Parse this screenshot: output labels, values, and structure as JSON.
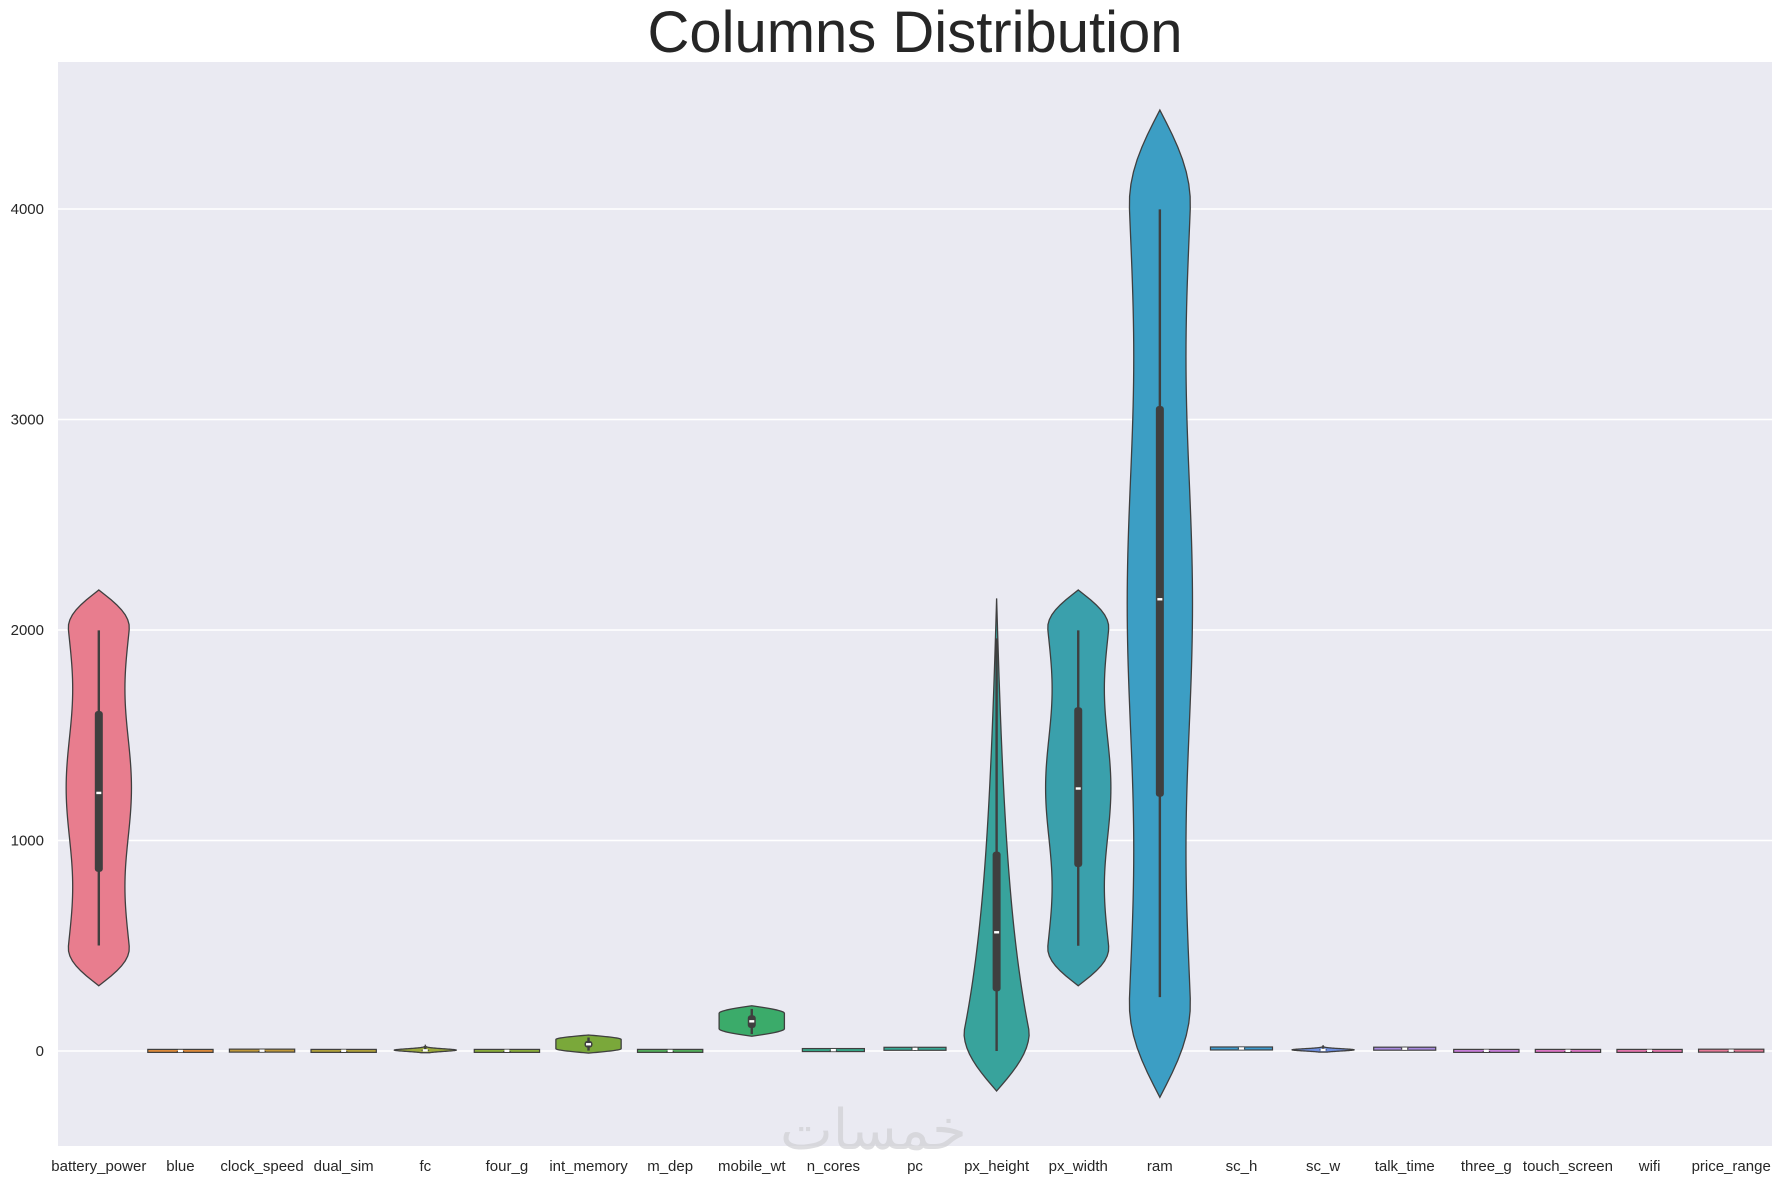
{
  "chart_data": {
    "type": "violin",
    "title": "Columns Distribution",
    "xlabel": "",
    "ylabel": "",
    "ylim": [
      -460,
      4720
    ],
    "yticks": [
      0,
      1000,
      2000,
      3000,
      4000
    ],
    "grid": true,
    "watermark": "خمسات",
    "categories": [
      "battery_power",
      "blue",
      "clock_speed",
      "dual_sim",
      "fc",
      "four_g",
      "int_memory",
      "m_dep",
      "mobile_wt",
      "n_cores",
      "pc",
      "px_height",
      "px_width",
      "ram",
      "sc_h",
      "sc_w",
      "talk_time",
      "three_g",
      "touch_screen",
      "wifi",
      "price_range"
    ],
    "series": [
      {
        "category": "battery_power",
        "color": "#e87d8e",
        "min": 501,
        "q1": 851,
        "median": 1226,
        "q3": 1615,
        "max": 1998,
        "kde_min": 310,
        "kde_max": 2190,
        "shape": "uniform"
      },
      {
        "category": "blue",
        "color": "#dc8a3a",
        "min": 0,
        "q1": 0,
        "median": 0,
        "q3": 1,
        "max": 1,
        "kde_min": -1,
        "kde_max": 2,
        "shape": "flat"
      },
      {
        "category": "clock_speed",
        "color": "#c29a3a",
        "min": 0.5,
        "q1": 0.7,
        "median": 1.5,
        "q3": 2.2,
        "max": 3,
        "kde_min": 0,
        "kde_max": 3.5,
        "shape": "flat"
      },
      {
        "category": "dual_sim",
        "color": "#b0a13a",
        "min": 0,
        "q1": 0,
        "median": 1,
        "q3": 1,
        "max": 1,
        "kde_min": -1,
        "kde_max": 2,
        "shape": "flat"
      },
      {
        "category": "fc",
        "color": "#9aa83a",
        "min": 0,
        "q1": 1,
        "median": 3,
        "q3": 7,
        "max": 19,
        "kde_min": -8,
        "kde_max": 27,
        "shape": "small"
      },
      {
        "category": "four_g",
        "color": "#8aad3a",
        "min": 0,
        "q1": 0,
        "median": 1,
        "q3": 1,
        "max": 1,
        "kde_min": -1,
        "kde_max": 2,
        "shape": "flat"
      },
      {
        "category": "int_memory",
        "color": "#7aa83a",
        "min": 2,
        "q1": 16,
        "median": 32,
        "q3": 48,
        "max": 64,
        "kde_min": -10,
        "kde_max": 76,
        "shape": "blob"
      },
      {
        "category": "m_dep",
        "color": "#52ad5a",
        "min": 0.1,
        "q1": 0.2,
        "median": 0.5,
        "q3": 0.8,
        "max": 1,
        "kde_min": -0.1,
        "kde_max": 1.2,
        "shape": "flat"
      },
      {
        "category": "mobile_wt",
        "color": "#3bab6a",
        "min": 80,
        "q1": 109,
        "median": 141,
        "q3": 170,
        "max": 200,
        "kde_min": 70,
        "kde_max": 215,
        "shape": "blob"
      },
      {
        "category": "n_cores",
        "color": "#38a98a",
        "min": 1,
        "q1": 3,
        "median": 4,
        "q3": 7,
        "max": 8,
        "kde_min": -1,
        "kde_max": 10,
        "shape": "small"
      },
      {
        "category": "pc",
        "color": "#36a794",
        "min": 0,
        "q1": 5,
        "median": 10,
        "q3": 15,
        "max": 20,
        "kde_min": -3,
        "kde_max": 24,
        "shape": "small"
      },
      {
        "category": "px_height",
        "color": "#38a39c",
        "min": 0,
        "q1": 283,
        "median": 564,
        "q3": 947,
        "max": 1960,
        "kde_min": -190,
        "kde_max": 2150,
        "shape": "skewed"
      },
      {
        "category": "px_width",
        "color": "#3aa0ac",
        "min": 500,
        "q1": 874,
        "median": 1247,
        "q3": 1633,
        "max": 1998,
        "kde_min": 310,
        "kde_max": 2190,
        "shape": "uniform"
      },
      {
        "category": "ram",
        "color": "#3c9ec4",
        "min": 256,
        "q1": 1208,
        "median": 2146,
        "q3": 3064,
        "max": 3998,
        "kde_min": -220,
        "kde_max": 4470,
        "shape": "uniform"
      },
      {
        "category": "sc_h",
        "color": "#3c9bd0",
        "min": 5,
        "q1": 9,
        "median": 12,
        "q3": 16,
        "max": 19,
        "kde_min": 2,
        "kde_max": 22,
        "shape": "small"
      },
      {
        "category": "sc_w",
        "color": "#6d8ee0",
        "min": 0,
        "q1": 2,
        "median": 5,
        "q3": 9,
        "max": 18,
        "kde_min": -5,
        "kde_max": 25,
        "shape": "small"
      },
      {
        "category": "talk_time",
        "color": "#a88ae0",
        "min": 2,
        "q1": 6,
        "median": 11,
        "q3": 16,
        "max": 20,
        "kde_min": -2,
        "kde_max": 24,
        "shape": "small"
      },
      {
        "category": "three_g",
        "color": "#c77ed8",
        "min": 0,
        "q1": 1,
        "median": 1,
        "q3": 1,
        "max": 1,
        "kde_min": -1,
        "kde_max": 2,
        "shape": "flat"
      },
      {
        "category": "touch_screen",
        "color": "#dc76c4",
        "min": 0,
        "q1": 0,
        "median": 1,
        "q3": 1,
        "max": 1,
        "kde_min": -1,
        "kde_max": 2,
        "shape": "flat"
      },
      {
        "category": "wifi",
        "color": "#e475ac",
        "min": 0,
        "q1": 0,
        "median": 1,
        "q3": 1,
        "max": 1,
        "kde_min": -1,
        "kde_max": 2,
        "shape": "flat"
      },
      {
        "category": "price_range",
        "color": "#e87a98",
        "min": 0,
        "q1": 0.75,
        "median": 1.5,
        "q3": 2.25,
        "max": 3,
        "kde_min": -1,
        "kde_max": 4,
        "shape": "flat"
      }
    ]
  }
}
